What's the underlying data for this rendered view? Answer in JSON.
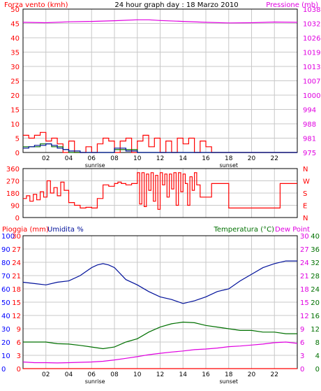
{
  "header": {
    "left_title": "Forza vento (kmh)",
    "center_title": "24 hour graph day : 18 Marzo 2010",
    "right_title": "Pressione (mb)"
  },
  "colors": {
    "red": "#ff0000",
    "blue": "#0000ff",
    "darkblue": "#00109a",
    "green": "#007000",
    "magenta": "#e000e0",
    "grid": "#c8c8c8",
    "frame": "#000000"
  },
  "chart_data": [
    {
      "type": "line",
      "name": "wind-pressure",
      "left_axis_label": "Forza vento (kmh)",
      "right_axis_label": "Pressione (mb)",
      "left_ticks": [
        0,
        5,
        10,
        15,
        20,
        25,
        30,
        35,
        40,
        45,
        50
      ],
      "right_ticks": [
        "975",
        "981",
        "988",
        "994",
        "1000",
        "1007",
        "1013",
        "1019",
        "1026",
        "1032",
        "1038"
      ],
      "x_ticks": [
        "02",
        "04",
        "06",
        "08",
        "10",
        "12",
        "14",
        "16",
        "18",
        "20",
        "22"
      ],
      "sunrise_label": "sunrise",
      "sunset_label": "sunset",
      "sunrise_hour": 6.3,
      "sunset_hour": 18.0,
      "ylim": [
        0,
        50
      ],
      "series": [
        {
          "color": "red",
          "x": [
            0,
            0.5,
            1,
            1.5,
            2,
            2.5,
            3,
            3.5,
            4,
            4.5,
            5,
            5.5,
            6,
            6.5,
            7,
            7.5,
            8,
            8.5,
            9,
            9.5,
            10,
            10.5,
            11,
            11.5,
            12,
            12.5,
            13,
            13.5,
            14,
            14.5,
            15,
            15.5,
            16,
            16.5,
            17,
            18,
            19,
            20,
            21,
            22,
            23,
            24
          ],
          "y": [
            6,
            5,
            6,
            7,
            4,
            5,
            3,
            0,
            4,
            0,
            0,
            2,
            0,
            3,
            5,
            4,
            0,
            4,
            5,
            0,
            4,
            6,
            2,
            5,
            0,
            4,
            0,
            5,
            3,
            5,
            0,
            4,
            2,
            0,
            0,
            0,
            0,
            0,
            0,
            0,
            0,
            0
          ]
        },
        {
          "color": "green",
          "x": [
            0,
            0.5,
            1,
            1.5,
            2,
            2.5,
            3,
            3.5,
            4,
            6,
            7,
            8,
            9,
            10,
            11,
            12,
            13,
            14,
            15,
            16,
            24
          ],
          "y": [
            2,
            2,
            2,
            3,
            3,
            2,
            2,
            1,
            0,
            0,
            0,
            1,
            1,
            0,
            0,
            0,
            0,
            0,
            0,
            0,
            0
          ]
        },
        {
          "color": "darkblue",
          "x": [
            0,
            0.5,
            1,
            1.5,
            2,
            2.5,
            3,
            3.5,
            4,
            5,
            6,
            7,
            8,
            9,
            10,
            11,
            12,
            13,
            14,
            15,
            16,
            24
          ],
          "y": [
            1.5,
            2,
            2.5,
            2.5,
            3,
            2.5,
            1.5,
            1,
            0.5,
            0,
            0,
            0,
            1.5,
            0.5,
            0,
            0,
            0,
            0,
            0,
            0,
            0,
            0
          ]
        },
        {
          "color": "magenta",
          "x": [
            0,
            2,
            4,
            6,
            8,
            10,
            11,
            12,
            14,
            16,
            18,
            20,
            22,
            24
          ],
          "y": [
            1032.2,
            1032.0,
            1032.4,
            1032.6,
            1032.9,
            1033.3,
            1033.3,
            1033.0,
            1032.6,
            1032.2,
            1031.9,
            1032.0,
            1032.3,
            1032.2
          ]
        }
      ]
    },
    {
      "type": "line",
      "name": "wind-direction",
      "left_ticks": [
        0,
        90,
        180,
        270,
        360
      ],
      "right_ticks": [
        "N",
        "E",
        "S",
        "W",
        "N"
      ],
      "ylim": [
        0,
        360
      ],
      "series": [
        {
          "color": "red",
          "x": [
            0,
            0.3,
            0.6,
            0.9,
            1.2,
            1.5,
            1.8,
            2.1,
            2.4,
            2.7,
            3,
            3.3,
            3.6,
            4,
            4.5,
            5,
            5.5,
            6,
            6.5,
            7,
            7.5,
            8,
            8.3,
            8.6,
            9,
            9.5,
            10,
            10.2,
            10.4,
            10.6,
            10.8,
            11,
            11.2,
            11.4,
            11.6,
            11.8,
            12,
            12.2,
            12.4,
            12.6,
            12.8,
            13,
            13.2,
            13.4,
            13.6,
            13.8,
            14,
            14.2,
            14.4,
            14.6,
            14.8,
            15,
            15.2,
            15.5,
            16,
            16.5,
            17,
            17.5,
            18,
            19,
            20,
            21,
            22,
            22.5,
            23,
            24
          ],
          "y": [
            140,
            160,
            120,
            170,
            130,
            190,
            150,
            270,
            180,
            220,
            160,
            260,
            200,
            110,
            90,
            70,
            75,
            70,
            140,
            240,
            230,
            250,
            260,
            250,
            240,
            250,
            330,
            100,
            330,
            80,
            320,
            200,
            330,
            120,
            310,
            60,
            330,
            240,
            320,
            150,
            320,
            210,
            330,
            90,
            330,
            190,
            320,
            250,
            90,
            300,
            200,
            330,
            240,
            150,
            150,
            250,
            250,
            250,
            70,
            70,
            70,
            70,
            70,
            250,
            250,
            250
          ]
        }
      ]
    },
    {
      "type": "line",
      "name": "rain-humidity-temperature",
      "left_label_1": "Pioggia (mm)",
      "left_label_2": "Umidita %",
      "right_label_1": "Temperatura (°C)",
      "right_label_2": "Dew Point",
      "rain_ticks": [
        0,
        3,
        6,
        9,
        12,
        15,
        18,
        21,
        24,
        27,
        30
      ],
      "humidity_ticks": [
        0,
        10,
        20,
        30,
        40,
        50,
        60,
        70,
        80,
        90,
        100
      ],
      "temp_ticks": [
        0,
        4,
        8,
        12,
        16,
        20,
        24,
        28,
        32,
        36,
        40
      ],
      "dew_ticks": [
        0,
        3,
        6,
        9,
        12,
        15,
        18,
        21,
        24,
        27,
        30
      ],
      "series": [
        {
          "color": "darkblue",
          "axis": "humidity",
          "x": [
            0,
            1,
            2,
            3,
            4,
            5,
            6,
            6.5,
            7,
            7.5,
            8,
            9,
            10,
            11,
            12,
            13,
            14,
            15,
            16,
            17,
            18,
            19,
            20,
            21,
            22,
            23,
            24
          ],
          "y": [
            65,
            64,
            63,
            65,
            66,
            70,
            76,
            78,
            79,
            78,
            76,
            67,
            63,
            58,
            54,
            52,
            49,
            51,
            54,
            58,
            60,
            66,
            71,
            76,
            79,
            81,
            81
          ]
        },
        {
          "color": "green",
          "axis": "temperature",
          "x": [
            0,
            1,
            2,
            3,
            4,
            5,
            6,
            7,
            8,
            9,
            10,
            11,
            12,
            13,
            14,
            15,
            16,
            17,
            18,
            19,
            20,
            21,
            22,
            23,
            24
          ],
          "y": [
            8,
            8,
            8,
            7.5,
            7.4,
            7,
            6.5,
            6,
            6.5,
            8,
            9,
            11,
            12.5,
            13.5,
            14,
            13.8,
            13,
            12.5,
            12,
            11.5,
            11.5,
            11,
            11,
            10.5,
            10.5
          ]
        },
        {
          "color": "magenta",
          "axis": "temperature",
          "x": [
            0,
            1,
            2,
            3,
            4,
            5,
            6,
            7,
            8,
            9,
            10,
            11,
            12,
            13,
            14,
            15,
            16,
            17,
            18,
            19,
            20,
            21,
            22,
            23,
            24
          ],
          "y": [
            2,
            1.8,
            1.8,
            1.7,
            1.8,
            1.9,
            2,
            2.2,
            2.6,
            3.1,
            3.6,
            4.2,
            4.6,
            5,
            5.3,
            5.7,
            5.9,
            6.2,
            6.6,
            6.8,
            7.1,
            7.4,
            7.8,
            8,
            7.6
          ]
        },
        {
          "color": "red",
          "axis": "rain",
          "x": [
            0,
            24
          ],
          "y": [
            0,
            0
          ]
        }
      ]
    }
  ]
}
